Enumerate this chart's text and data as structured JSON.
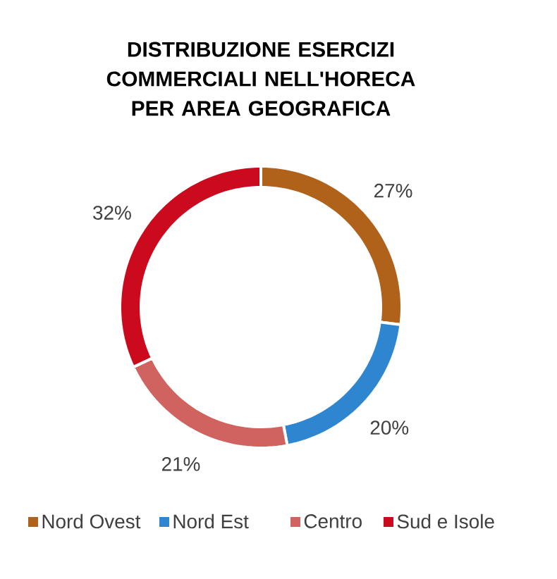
{
  "chart_data": {
    "type": "donut",
    "title": "DISTRIBUZIONE ESERCIZI COMMERCIALI NELL'HORECA PER AREA GEOGRAFICA",
    "categories": [
      "Nord Ovest",
      "Nord Est",
      "Centro",
      "Sud e Isole"
    ],
    "values": [
      27,
      20,
      21,
      32
    ],
    "colors": [
      "#b0621a",
      "#2e86d1",
      "#d0625f",
      "#cc0a1e"
    ],
    "value_labels": [
      "27%",
      "20%",
      "21%",
      "32%"
    ],
    "legend": "bottom"
  }
}
